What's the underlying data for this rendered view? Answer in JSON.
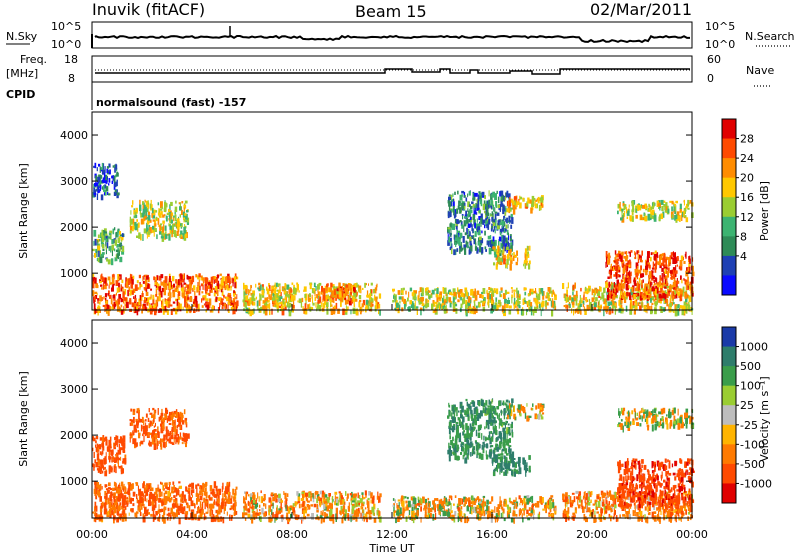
{
  "header": {
    "station": "Inuvik (fitACF)",
    "beam": "Beam 15",
    "date": "02/Mar/2011"
  },
  "summary_panels": {
    "nsky_label": "N.Sky",
    "nsearch_label": "N.Search",
    "nsky_ticks": [
      "10^5",
      "10^0"
    ],
    "nsearch_ticks": [
      "10^5",
      "10^0"
    ],
    "freq_label": "Freq.",
    "freq_unit": "[MHz]",
    "freq_ticks": [
      "18",
      "8"
    ],
    "nave_label": "Nave",
    "nave_ticks": [
      "60",
      "0"
    ],
    "cpid_label": "CPID",
    "cpid_value": "normalsound (fast) -157"
  },
  "legend_power": {
    "label": "Power [dB]",
    "ticks": [
      "28",
      "24",
      "20",
      "16",
      "12",
      "8",
      "4"
    ],
    "colors": [
      "#e00000",
      "#ff4a00",
      "#ff8c00",
      "#ffc800",
      "#9acd32",
      "#3cb371",
      "#2e8b57",
      "#1e40b4",
      "#0a0aff"
    ]
  },
  "legend_velocity": {
    "label": "Velocity [m s⁻¹]",
    "ticks": [
      "1000",
      "500",
      "100",
      "25",
      "-25",
      "-100",
      "-500",
      "-1000"
    ],
    "colors": [
      "#1a3aa8",
      "#2e7d6b",
      "#3a9d4a",
      "#9acd32",
      "#bdbdbd",
      "#ffb400",
      "#ff7a00",
      "#ff4a00",
      "#e00000"
    ]
  },
  "chart_data": [
    {
      "type": "heatmap",
      "name": "power",
      "ylabel": "Slant Range [km]",
      "xlabel": "Time UT",
      "x_ticks": [
        "00:00",
        "04:00",
        "08:00",
        "12:00",
        "16:00",
        "20:00",
        "00:00"
      ],
      "y_ticks": [
        1000,
        2000,
        3000,
        4000
      ],
      "xlim_hours": [
        0,
        24
      ],
      "ylim_km": [
        200,
        4500
      ],
      "colorbar": "Power [dB]",
      "regions": [
        {
          "t0": 0.0,
          "t1": 5.8,
          "r0": 200,
          "r1": 1000,
          "v": 26
        },
        {
          "t0": 0.0,
          "t1": 1.2,
          "r0": 1300,
          "r1": 2000,
          "v": 12
        },
        {
          "t0": 0.0,
          "t1": 1.0,
          "r0": 2700,
          "r1": 3400,
          "v": 5
        },
        {
          "t0": 1.5,
          "t1": 3.8,
          "r0": 1800,
          "r1": 2600,
          "v": 18
        },
        {
          "t0": 6.0,
          "t1": 11.5,
          "r0": 200,
          "r1": 800,
          "v": 20
        },
        {
          "t0": 9.0,
          "t1": 10.5,
          "r0": 400,
          "r1": 800,
          "v": 24
        },
        {
          "t0": 12.0,
          "t1": 18.5,
          "r0": 200,
          "r1": 700,
          "v": 18
        },
        {
          "t0": 14.2,
          "t1": 16.8,
          "r0": 1500,
          "r1": 2800,
          "v": 8
        },
        {
          "t0": 16.0,
          "t1": 17.5,
          "r0": 1200,
          "r1": 1600,
          "v": 20
        },
        {
          "t0": 16.5,
          "t1": 18.0,
          "r0": 2400,
          "r1": 2700,
          "v": 22
        },
        {
          "t0": 18.8,
          "t1": 24.0,
          "r0": 200,
          "r1": 800,
          "v": 20
        },
        {
          "t0": 20.5,
          "t1": 24.0,
          "r0": 500,
          "r1": 1500,
          "v": 28
        },
        {
          "t0": 21.0,
          "t1": 24.0,
          "r0": 2200,
          "r1": 2600,
          "v": 18
        }
      ]
    },
    {
      "type": "heatmap",
      "name": "velocity",
      "ylabel": "Slant Range [km]",
      "xlabel": "Time UT",
      "x_ticks": [
        "00:00",
        "04:00",
        "08:00",
        "12:00",
        "16:00",
        "20:00",
        "00:00"
      ],
      "y_ticks": [
        1000,
        2000,
        3000,
        4000
      ],
      "xlim_hours": [
        0,
        24
      ],
      "ylim_km": [
        200,
        4500
      ],
      "colorbar": "Velocity [m s⁻¹]",
      "regions": [
        {
          "t0": 0.0,
          "t1": 5.8,
          "r0": 200,
          "r1": 1000,
          "v": -300
        },
        {
          "t0": 0.0,
          "t1": 1.3,
          "r0": 1200,
          "r1": 2000,
          "v": -500
        },
        {
          "t0": 1.5,
          "t1": 3.8,
          "r0": 1800,
          "r1": 2600,
          "v": -400
        },
        {
          "t0": 6.0,
          "t1": 11.5,
          "r0": 200,
          "r1": 800,
          "v": -150
        },
        {
          "t0": 12.0,
          "t1": 18.5,
          "r0": 200,
          "r1": 700,
          "v": -80
        },
        {
          "t0": 14.2,
          "t1": 16.8,
          "r0": 1500,
          "r1": 2800,
          "v": 300
        },
        {
          "t0": 16.0,
          "t1": 17.5,
          "r0": 1200,
          "r1": 1600,
          "v": 400
        },
        {
          "t0": 16.5,
          "t1": 18.0,
          "r0": 2400,
          "r1": 2700,
          "v": 0
        },
        {
          "t0": 18.8,
          "t1": 24.0,
          "r0": 200,
          "r1": 800,
          "v": -200
        },
        {
          "t0": 21.0,
          "t1": 24.0,
          "r0": 500,
          "r1": 1500,
          "v": -600
        },
        {
          "t0": 21.0,
          "t1": 24.0,
          "r0": 2200,
          "r1": 2600,
          "v": 0
        }
      ]
    }
  ]
}
